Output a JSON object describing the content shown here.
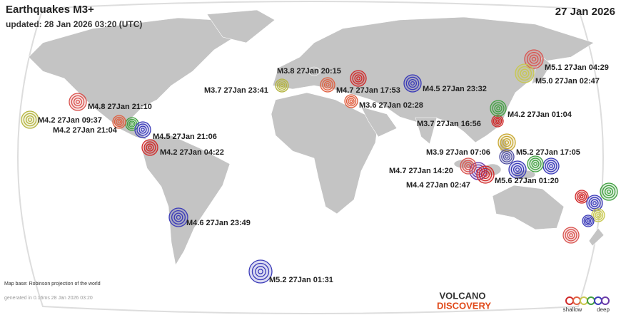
{
  "header": {
    "title": "Earthquakes M3+",
    "updated": "updated: 28 Jan 2026 03:20 (UTC)",
    "date": "27 Jan 2026"
  },
  "quakes": [
    {
      "label": "M5.1 27Jan 04:29",
      "color": "#d9534f"
    },
    {
      "label": "M5.0 27Jan 02:47",
      "color": "#c8c850"
    },
    {
      "label": "M3.8 27Jan 20:15",
      "color": "#e06040"
    },
    {
      "label": "M3.7 27Jan 23:41",
      "color": "#b5b540"
    },
    {
      "label": "M4.7 27Jan 17:53",
      "color": "#d02828"
    },
    {
      "label": "M4.5 27Jan 23:32",
      "color": "#3a3ab8"
    },
    {
      "label": "M3.6 27Jan 02:28",
      "color": "#e06040"
    },
    {
      "label": "M4.8 27Jan 21:10",
      "color": "#d9534f"
    },
    {
      "label": "M4.2 27Jan 09:37",
      "color": "#b5b540"
    },
    {
      "label": "M4.2 27Jan 21:04",
      "color": "#e06040"
    },
    {
      "label": "M4.5 27Jan 21:06",
      "color": "#3a3ab8"
    },
    {
      "label": "M4.2 27Jan 04:22",
      "color": "#d02828"
    },
    {
      "label": "M4.2 27Jan 01:04",
      "color": "#40a040"
    },
    {
      "label": "M3.7 27Jan 16:56",
      "color": "#c8a830"
    },
    {
      "label": "M3.9 27Jan 07:06",
      "color": "#5050a0"
    },
    {
      "label": "M5.2 27Jan 17:05",
      "color": "#40a040"
    },
    {
      "label": "M4.7 27Jan 14:20",
      "color": "#d9534f"
    },
    {
      "label": "M4.4 27Jan 02:47",
      "color": "#d02828"
    },
    {
      "label": "M5.6 27Jan 01:20",
      "color": "#3a3ab8"
    },
    {
      "label": "M4.6 27Jan 23:49",
      "color": "#3a3ab8"
    },
    {
      "label": "M5.2 27Jan 01:31",
      "color": "#3a3ab8"
    }
  ],
  "footer": {
    "map_base": "Map base: Robinson projection of the world",
    "generated": "generated in 0.16ms 28 Jan 2026 03:20",
    "logo_top": "VOLCANO",
    "logo_bottom": "DISCOVERY",
    "legend_shallow": "shallow",
    "legend_deep": "deep"
  }
}
